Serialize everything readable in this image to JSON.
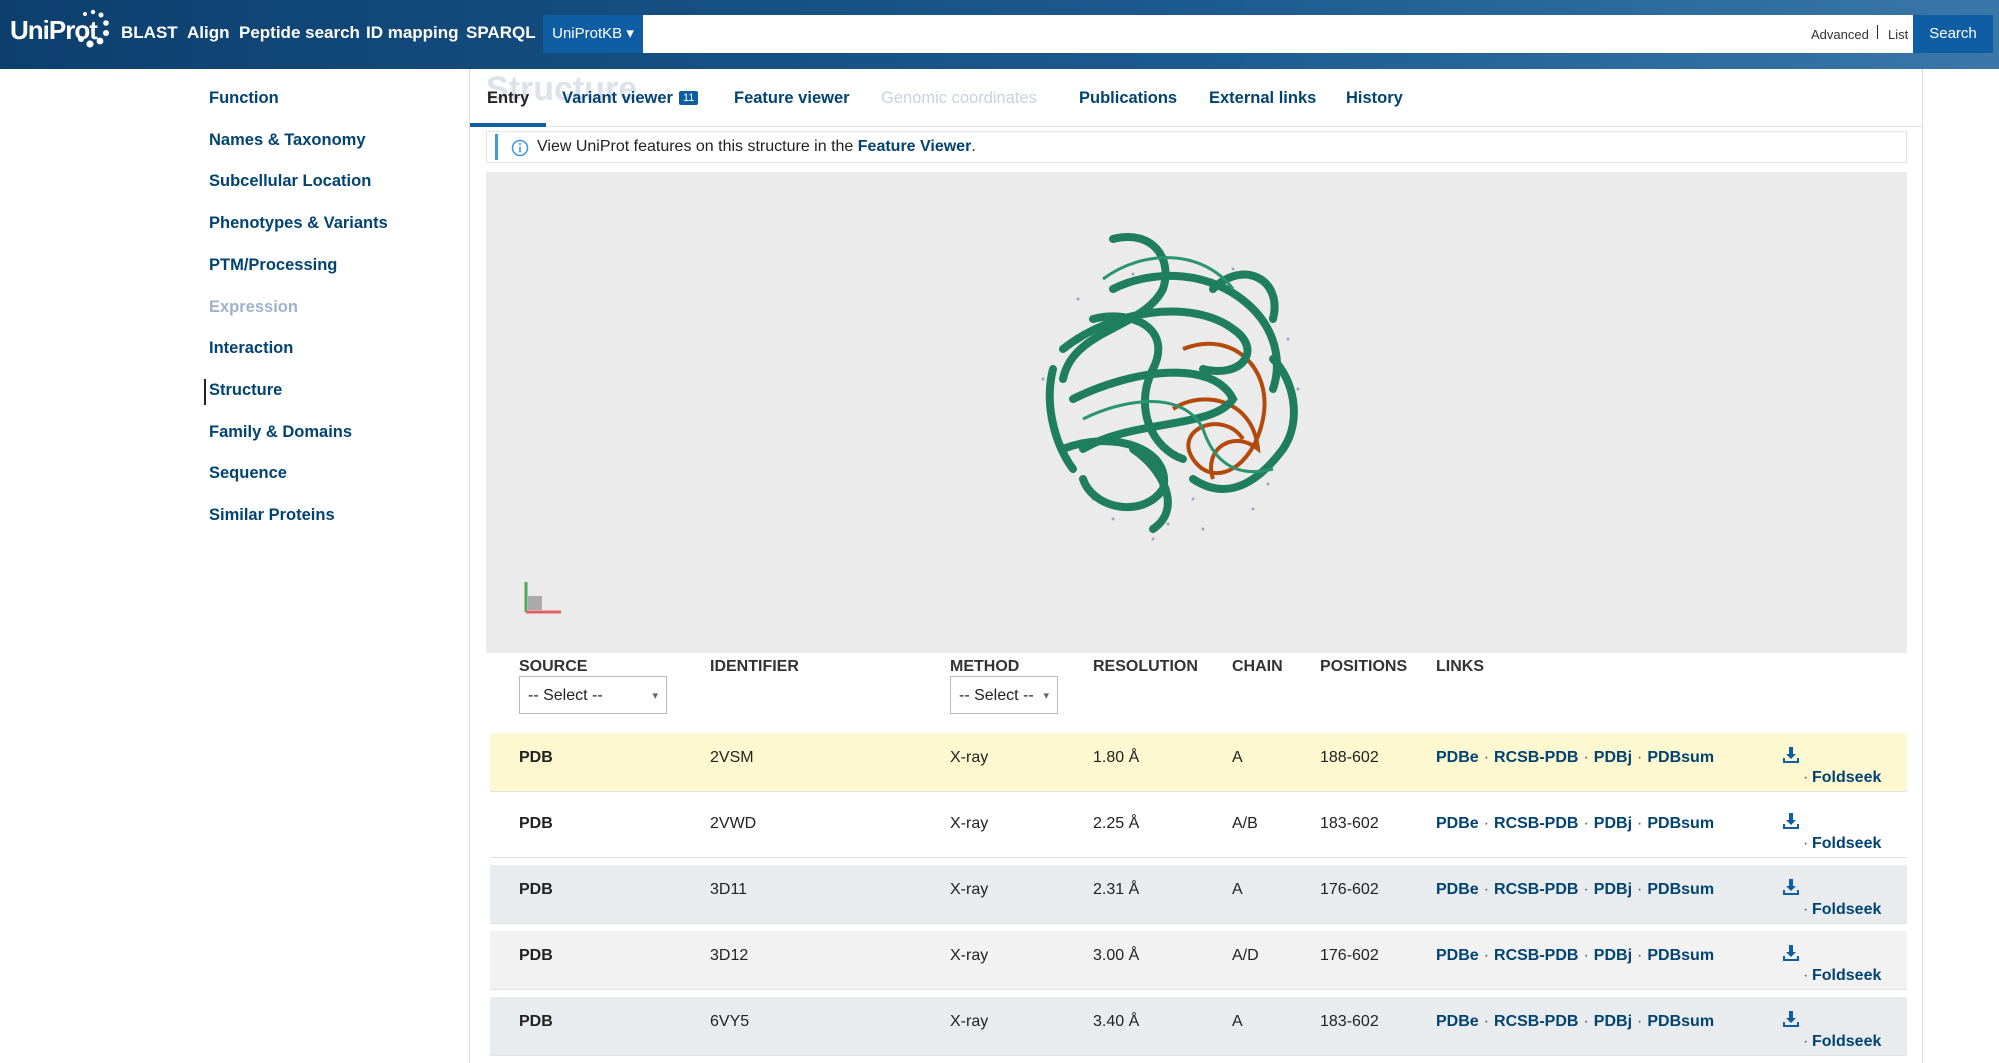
{
  "header": {
    "logo": "UniProt",
    "nav": [
      "BLAST",
      "Align",
      "Peptide search",
      "ID mapping",
      "SPARQL"
    ],
    "database": "UniProtKB",
    "links": [
      "Advanced",
      "List"
    ],
    "search_button": "Search"
  },
  "sidebar": [
    "Function",
    "Names & Taxonomy",
    "Subcellular Location",
    "Phenotypes & Variants",
    "PTM/Processing",
    "Expression",
    "Interaction",
    "Structure",
    "Family & Domains",
    "Sequence",
    "Similar Proteins"
  ],
  "section_heading": "Structure",
  "tabs": [
    "Entry",
    "Variant viewer",
    "Feature viewer",
    "Genomic coordinates",
    "Publications",
    "External links",
    "History"
  ],
  "variant_badge": "11",
  "info": {
    "text": "View UniProt features on this structure in the",
    "link": "Feature Viewer",
    "end": "."
  },
  "table": {
    "headers": [
      "SOURCE",
      "IDENTIFIER",
      "METHOD",
      "RESOLUTION",
      "CHAIN",
      "POSITIONS",
      "LINKS"
    ],
    "select_placeholder": "-- Select --",
    "link_names": [
      "PDBe",
      "RCSB-PDB",
      "PDBj",
      "PDBsum"
    ],
    "foldseek": "Foldseek",
    "separator": "·",
    "rows": [
      [
        "PDB",
        "2VSM",
        "X-ray",
        "1.80 Å",
        "A",
        "188-602"
      ],
      [
        "PDB",
        "2VWD",
        "X-ray",
        "2.25 Å",
        "A/B",
        "183-602"
      ],
      [
        "PDB",
        "3D11",
        "X-ray",
        "2.31 Å",
        "A",
        "176-602"
      ],
      [
        "PDB",
        "3D12",
        "X-ray",
        "3.00 Å",
        "A/D",
        "176-602"
      ],
      [
        "PDB",
        "6VY5",
        "X-ray",
        "3.40 Å",
        "A",
        "183-602"
      ]
    ]
  }
}
